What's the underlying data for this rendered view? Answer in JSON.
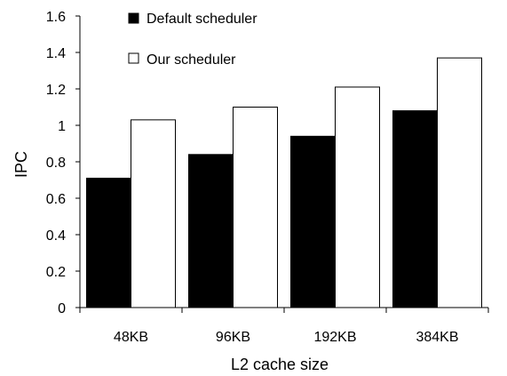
{
  "chart_data": {
    "type": "bar",
    "title": "",
    "xlabel": "L2 cache size",
    "ylabel": "IPC",
    "categories": [
      "48KB",
      "96KB",
      "192KB",
      "384KB"
    ],
    "ylim": [
      0,
      1.6
    ],
    "yticks": [
      "0",
      "0.2",
      "0.4",
      "0.6",
      "0.8",
      "1",
      "1.2",
      "1.4",
      "1.6"
    ],
    "grid": false,
    "legend_position": "top-left",
    "series": [
      {
        "name": "Default scheduler",
        "values": [
          0.71,
          0.84,
          0.94,
          1.08
        ],
        "color": "#000000"
      },
      {
        "name": "Our scheduler",
        "values": [
          1.03,
          1.1,
          1.21,
          1.37
        ],
        "color": "#ffffff"
      }
    ]
  }
}
